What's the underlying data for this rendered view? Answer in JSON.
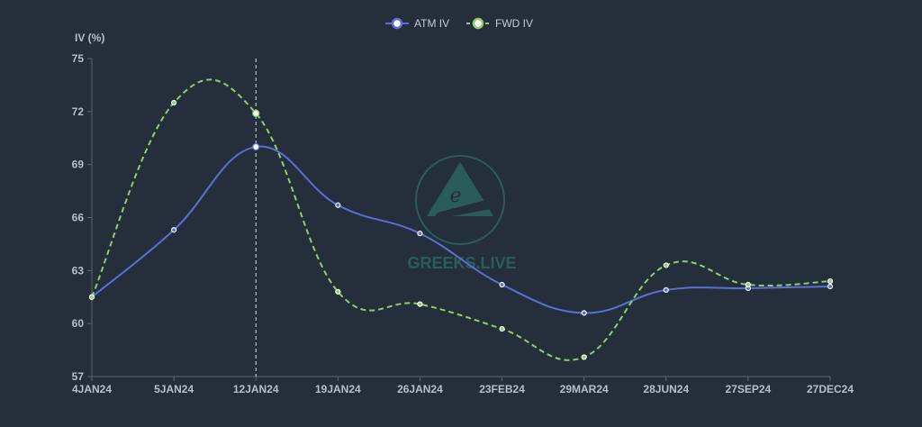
{
  "watermark": {
    "text": "GREEKS.LIVE",
    "color": "#2a5c5c"
  },
  "chart_data": {
    "type": "line",
    "ylabel": "IV (%)",
    "xlabel": "",
    "categories": [
      "4JAN24",
      "5JAN24",
      "12JAN24",
      "19JAN24",
      "26JAN24",
      "23FEB24",
      "29MAR24",
      "28JUN24",
      "27SEP24",
      "27DEC24"
    ],
    "ylim": [
      57,
      75
    ],
    "yticks": [
      57,
      60,
      63,
      66,
      69,
      72,
      75
    ],
    "grid": false,
    "legend_position": "top-center",
    "crosshair_category": "12JAN24",
    "series": [
      {
        "name": "ATM IV",
        "color": "#5b6fd6",
        "dashed": false,
        "values": [
          61.5,
          65.3,
          70.0,
          66.7,
          65.1,
          62.2,
          60.6,
          61.9,
          62.0,
          62.1
        ]
      },
      {
        "name": "FWD IV",
        "color": "#8fcf6a",
        "dashed": true,
        "values": [
          61.5,
          72.5,
          71.9,
          61.8,
          61.1,
          59.7,
          58.1,
          63.3,
          62.2,
          62.4
        ]
      }
    ]
  }
}
